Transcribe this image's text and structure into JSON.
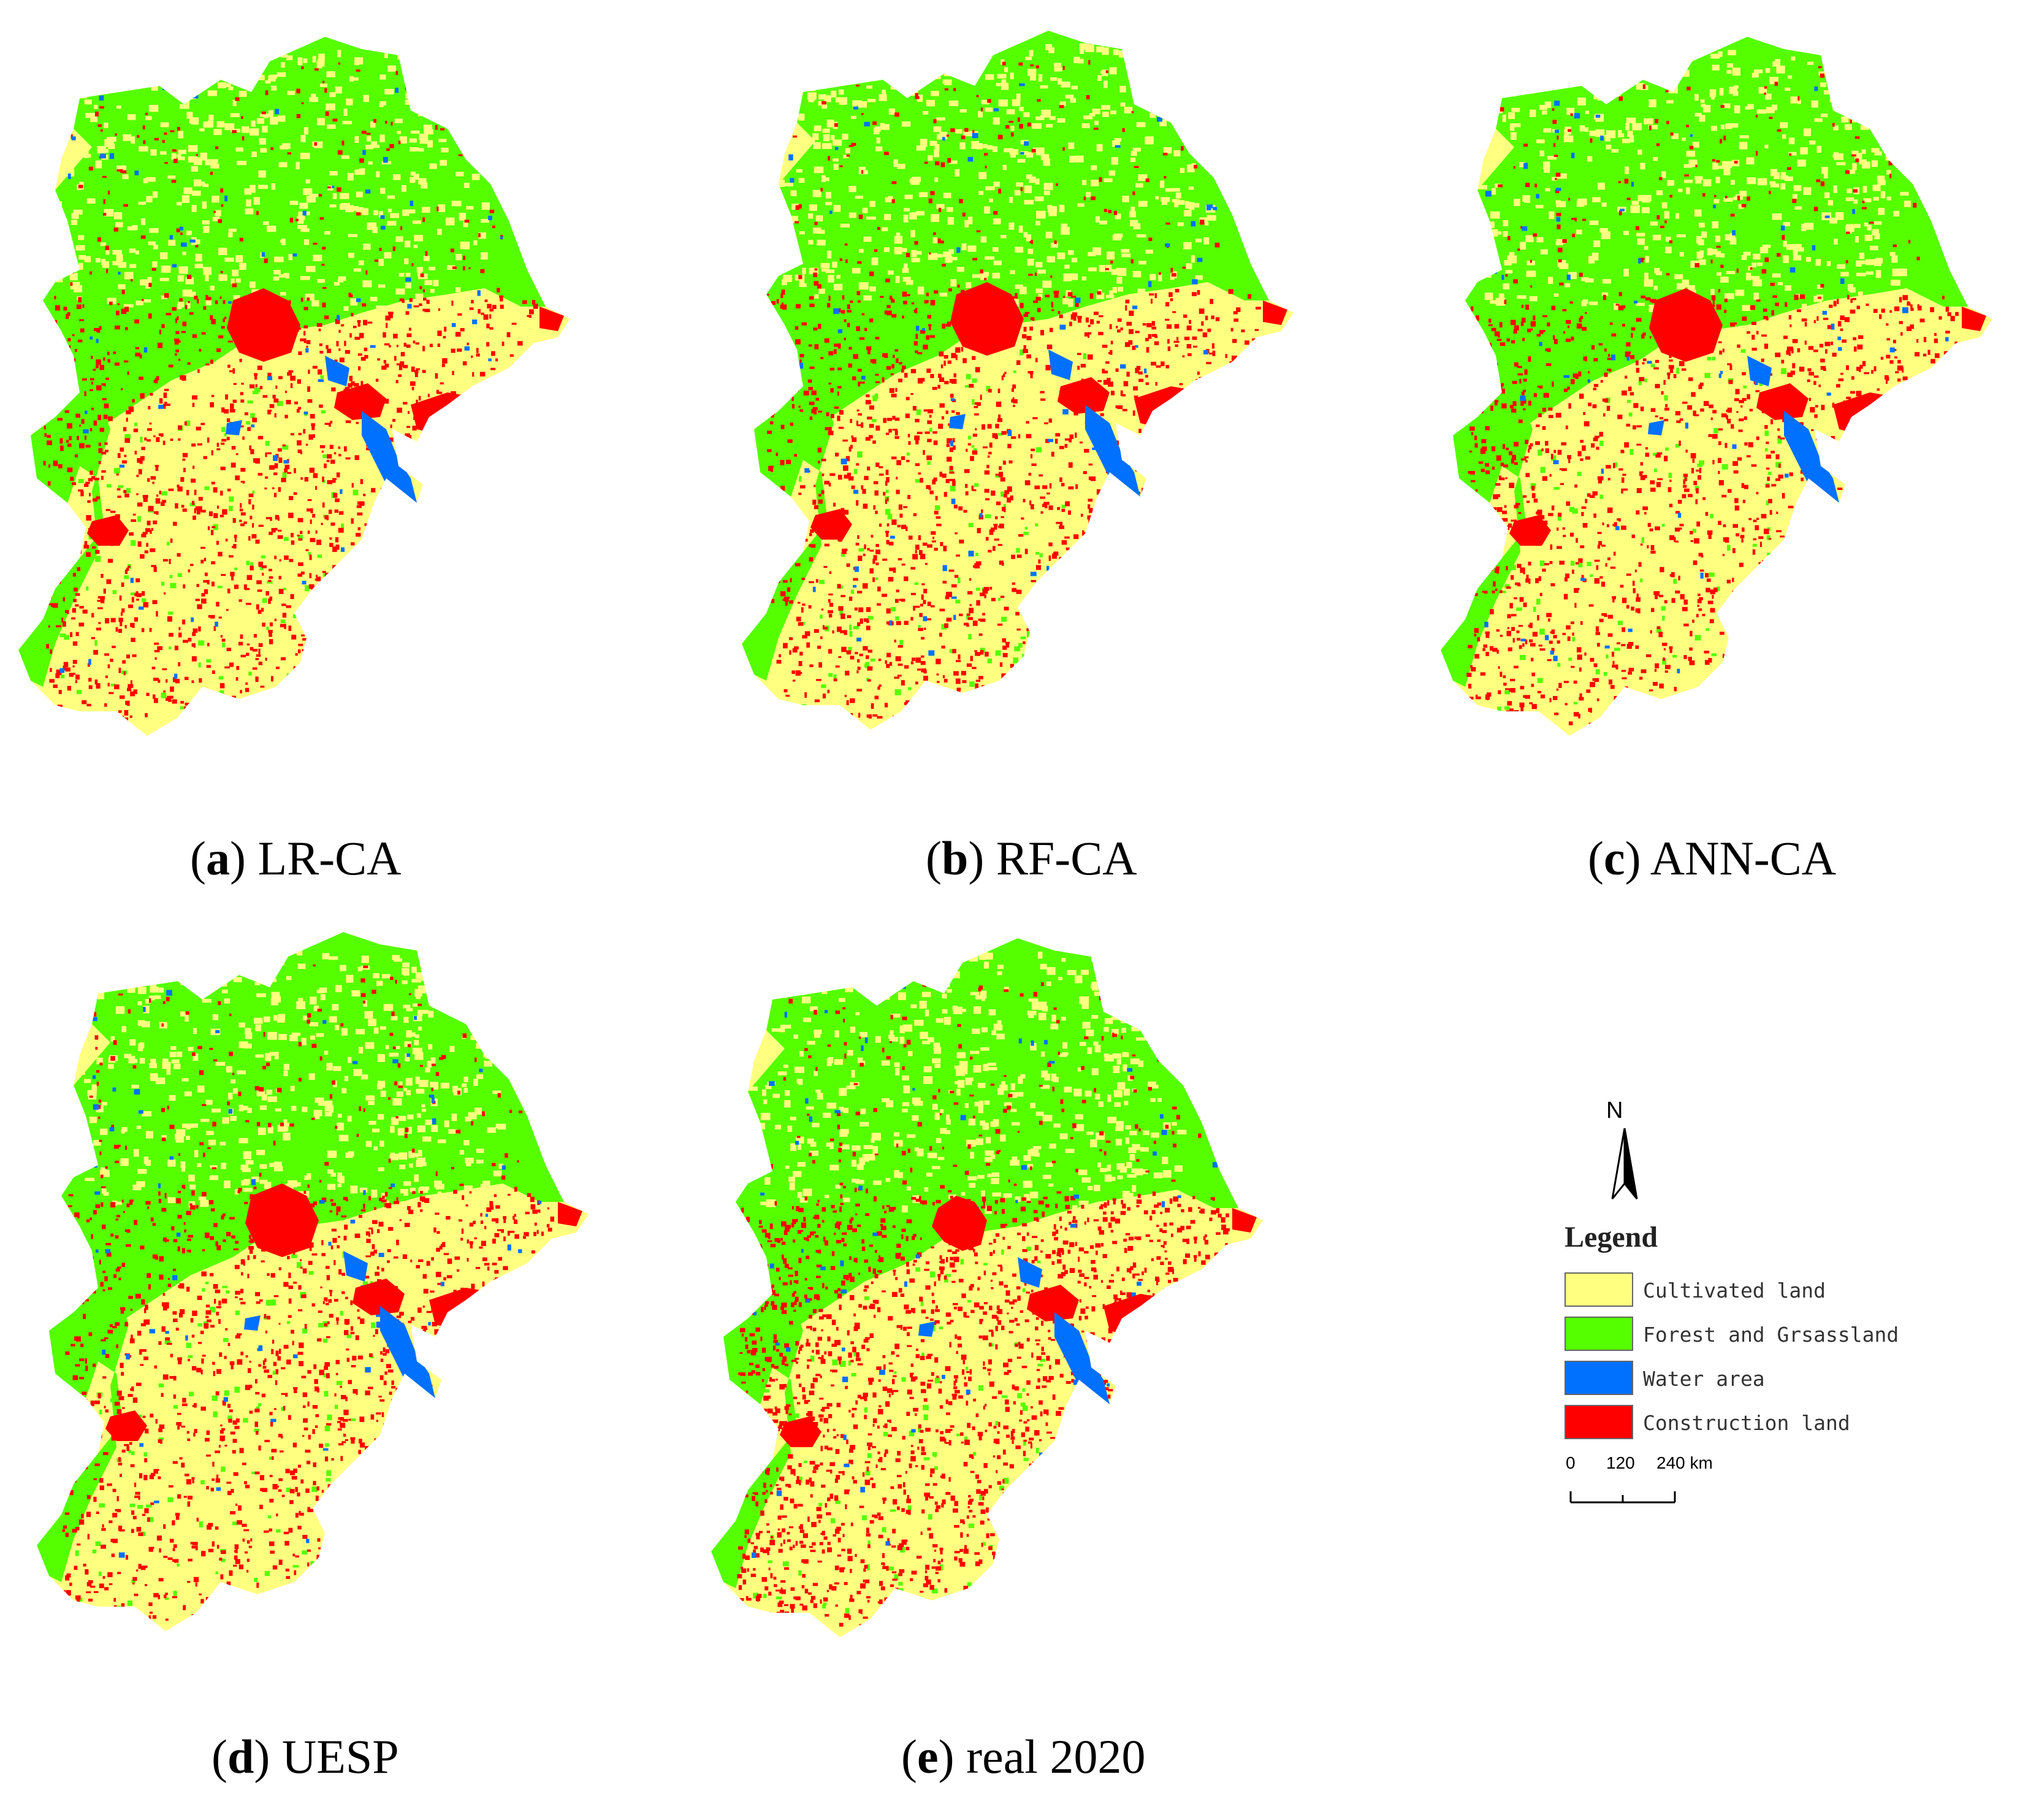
{
  "panels": [
    {
      "id": "a",
      "letter": "a",
      "name": "LR-CA"
    },
    {
      "id": "b",
      "letter": "b",
      "name": "RF-CA"
    },
    {
      "id": "c",
      "letter": "c",
      "name": "ANN-CA"
    },
    {
      "id": "d",
      "letter": "d",
      "name": "UESP"
    },
    {
      "id": "e",
      "letter": "e",
      "name": "real 2020"
    }
  ],
  "legend": {
    "north_label": "N",
    "title": "Legend",
    "items": [
      {
        "label": "Cultivated land",
        "color": "#ffff80"
      },
      {
        "label": "Forest and Grsassland",
        "color": "#55ff00"
      },
      {
        "label": "Water area",
        "color": "#0070ff"
      },
      {
        "label": "Construction land",
        "color": "#ff0000"
      }
    ],
    "scale": {
      "ticks": [
        "0",
        "120",
        "240 km"
      ]
    }
  },
  "colors": {
    "cultivated": "#ffff80",
    "forest": "#55ff00",
    "water": "#0070ff",
    "construction": "#ff0000"
  }
}
